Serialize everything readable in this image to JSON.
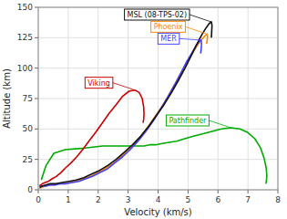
{
  "chart_data": {
    "type": "line",
    "xlabel": "Velocity (km/s)",
    "ylabel": "Altitude (km)",
    "xlim": [
      0,
      8
    ],
    "ylim": [
      0,
      150
    ],
    "xticks": [
      0,
      1,
      2,
      3,
      4,
      5,
      6,
      7,
      8
    ],
    "yticks": [
      0,
      25,
      50,
      75,
      100,
      125,
      150
    ],
    "grid": true,
    "series": [
      {
        "name": "Pathfinder",
        "color": "#00aa00",
        "x": [
          7.6,
          7.62,
          7.63,
          7.61,
          7.54,
          7.41,
          7.23,
          7.0,
          6.73,
          6.43,
          6.12,
          5.8,
          5.48,
          5.18,
          4.89,
          4.62,
          4.37,
          4.14,
          3.92,
          3.72,
          3.53,
          3.36,
          3.2,
          3.04,
          2.9,
          2.76,
          2.63,
          2.5,
          2.38,
          2.26,
          2.14,
          1.43,
          0.9,
          0.52,
          0.26,
          0.1
        ],
        "values": [
          5,
          8,
          12,
          18,
          26,
          35,
          42,
          47,
          50,
          51,
          50,
          48,
          46,
          44,
          42,
          40,
          39,
          38,
          37,
          37,
          36,
          36,
          36,
          36,
          36,
          36,
          36,
          36,
          36,
          36,
          36,
          34,
          33,
          30,
          20,
          8
        ]
      },
      {
        "name": "Phoenix",
        "color": "#ff8800",
        "x": [
          5.62,
          5.64,
          5.65,
          5.64,
          5.58,
          5.47,
          5.32,
          5.14,
          4.93,
          4.7,
          4.45,
          4.19,
          3.92,
          3.64,
          3.36,
          3.08,
          2.8,
          2.53,
          2.26,
          2.0,
          1.75,
          1.51,
          1.28,
          1.07,
          0.87,
          0.68,
          0.51,
          0.36,
          0.22,
          0.11,
          0.04
        ],
        "values": [
          120,
          123,
          126,
          128,
          127,
          124,
          119,
          112,
          103,
          93,
          82,
          71,
          61,
          51,
          42,
          34,
          28,
          22,
          18,
          14,
          11,
          9,
          7,
          6,
          5,
          5,
          4,
          4,
          3,
          2,
          1
        ]
      },
      {
        "name": "Viking",
        "color": "#cc0000",
        "x": [
          3.5,
          3.52,
          3.53,
          3.52,
          3.47,
          3.37,
          3.22,
          3.03,
          2.82,
          2.6,
          2.37,
          2.14,
          1.91,
          1.69,
          1.48,
          1.28,
          1.09,
          0.91,
          0.75,
          0.6,
          0.46,
          0.34,
          0.23,
          0.14,
          0.08,
          0.04
        ],
        "values": [
          55,
          58,
          62,
          68,
          75,
          80,
          82,
          81,
          77,
          70,
          63,
          55,
          47,
          40,
          33,
          27,
          22,
          18,
          14,
          11,
          9,
          7,
          6,
          5,
          4,
          3
        ]
      },
      {
        "name": "MER",
        "color": "#4444ff",
        "x": [
          5.42,
          5.44,
          5.45,
          5.44,
          5.38,
          5.28,
          5.14,
          4.97,
          4.78,
          4.57,
          4.34,
          4.1,
          3.85,
          3.59,
          3.33,
          3.07,
          2.81,
          2.55,
          2.3,
          2.05,
          1.81,
          1.58,
          1.36,
          1.14,
          0.94,
          0.75,
          0.57,
          0.4,
          0.25,
          0.13,
          0.05
        ],
        "values": [
          112,
          116,
          120,
          123,
          122,
          119,
          113,
          106,
          97,
          87,
          77,
          67,
          57,
          48,
          40,
          33,
          27,
          22,
          17,
          14,
          11,
          9,
          7,
          6,
          5,
          5,
          4,
          4,
          3,
          3,
          2
        ]
      },
      {
        "name": "MSL (08-TPS-02)",
        "color": "#111111",
        "x": [
          5.78,
          5.79,
          5.8,
          5.78,
          5.72,
          5.6,
          5.45,
          5.28,
          5.1,
          4.9,
          4.68,
          4.45,
          4.2,
          3.94,
          3.68,
          3.42,
          3.15,
          2.88,
          2.6,
          2.32,
          2.05,
          1.78,
          1.52,
          1.27,
          1.03,
          0.8,
          0.59,
          0.4,
          0.24,
          0.12,
          0.05
        ],
        "values": [
          125,
          130,
          135,
          138,
          137,
          133,
          127,
          119,
          110,
          100,
          90,
          80,
          70,
          61,
          52,
          44,
          37,
          31,
          25,
          20,
          16,
          13,
          10,
          8,
          7,
          6,
          5,
          5,
          4,
          3,
          2
        ]
      }
    ]
  }
}
